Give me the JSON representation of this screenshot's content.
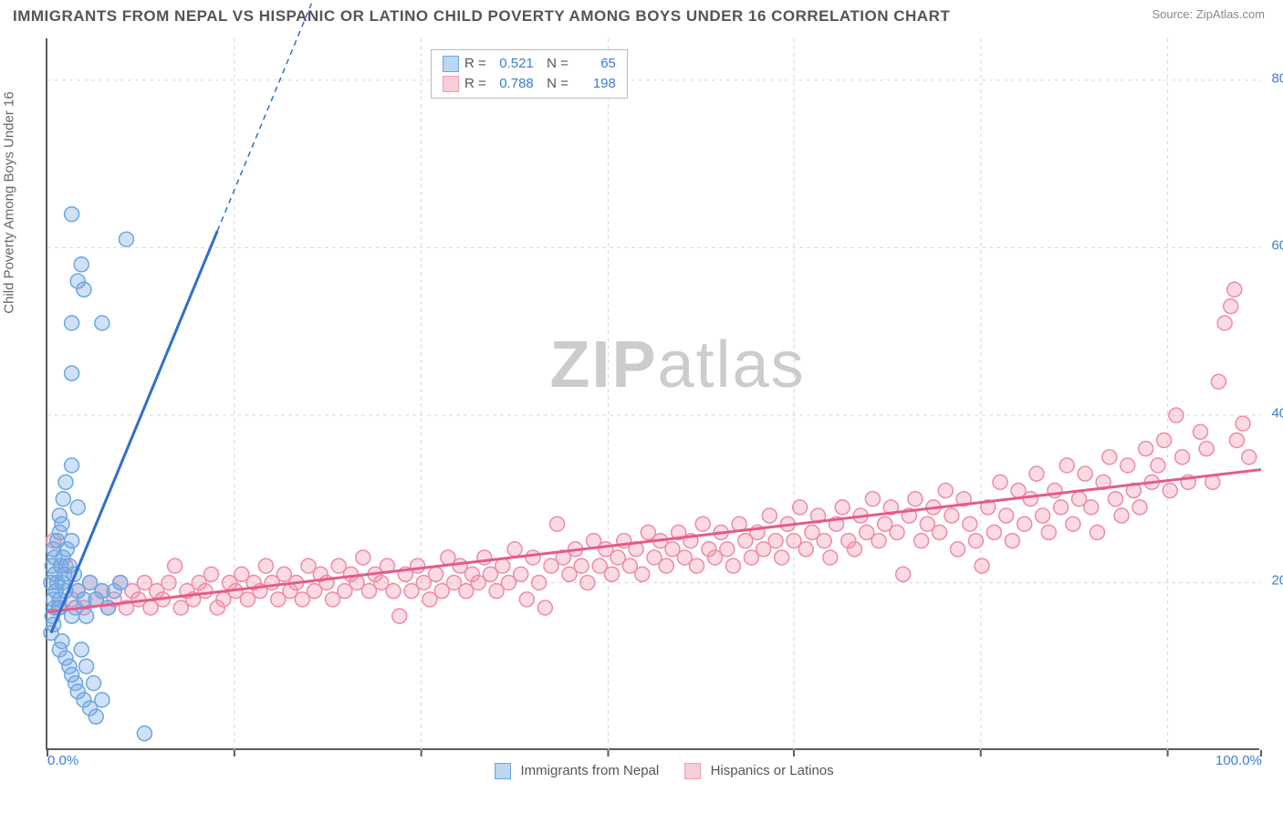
{
  "title": "IMMIGRANTS FROM NEPAL VS HISPANIC OR LATINO CHILD POVERTY AMONG BOYS UNDER 16 CORRELATION CHART",
  "source": "Source: ZipAtlas.com",
  "watermark_bold": "ZIP",
  "watermark_rest": "atlas",
  "y_axis_label": "Child Poverty Among Boys Under 16",
  "chart": {
    "type": "scatter",
    "background_color": "#ffffff",
    "grid_color": "#d8d8d8",
    "axis_color": "#5c5c5c",
    "text_color": "#555555",
    "value_color": "#3b7dd8",
    "xlim": [
      0,
      100
    ],
    "ylim": [
      0,
      85
    ],
    "x_ticks": [
      0,
      15.4,
      30.8,
      46.2,
      61.5,
      76.9,
      92.3,
      100
    ],
    "x_tick_labels": {
      "0": "0.0%",
      "100": "100.0%"
    },
    "y_ticks": [
      20,
      40,
      60,
      80
    ],
    "y_tick_labels": {
      "20": "20.0%",
      "40": "40.0%",
      "60": "60.0%",
      "80": "80.0%"
    },
    "marker_radius": 8,
    "marker_stroke_width": 1.5,
    "line_width": 3
  },
  "series_a": {
    "label": "Immigrants from Nepal",
    "swatch_fill": "#bdd7f0",
    "swatch_stroke": "#6ca6e2",
    "marker_fill": "rgba(120,170,225,0.35)",
    "marker_stroke": "#6ca6e2",
    "line_color": "#2f6fc9",
    "R": "0.521",
    "N": "65",
    "trend": {
      "x1": 0.3,
      "y1": 14,
      "x2_solid": 14,
      "y2_solid": 62,
      "x2_dash": 22,
      "y2_dash": 90
    },
    "points": [
      [
        0.3,
        14
      ],
      [
        0.4,
        16
      ],
      [
        0.5,
        15
      ],
      [
        0.6,
        17
      ],
      [
        0.5,
        18
      ],
      [
        0.7,
        19
      ],
      [
        0.8,
        20
      ],
      [
        0.6,
        21
      ],
      [
        0.4,
        22
      ],
      [
        0.5,
        24
      ],
      [
        0.9,
        17
      ],
      [
        1.0,
        18
      ],
      [
        1.2,
        20
      ],
      [
        1.1,
        22
      ],
      [
        1.3,
        23
      ],
      [
        1.5,
        19
      ],
      [
        1.4,
        21
      ],
      [
        1.6,
        24
      ],
      [
        1.8,
        22
      ],
      [
        2.0,
        25
      ],
      [
        2.2,
        21
      ],
      [
        2.5,
        19
      ],
      [
        2.3,
        17
      ],
      [
        2.0,
        16
      ],
      [
        3.0,
        18
      ],
      [
        3.5,
        20
      ],
      [
        3.2,
        16
      ],
      [
        4.0,
        18
      ],
      [
        4.5,
        19
      ],
      [
        5.0,
        17
      ],
      [
        5.5,
        19
      ],
      [
        6.0,
        20
      ],
      [
        1.0,
        12
      ],
      [
        1.2,
        13
      ],
      [
        1.5,
        11
      ],
      [
        1.8,
        10
      ],
      [
        2.0,
        9
      ],
      [
        2.3,
        8
      ],
      [
        2.5,
        7
      ],
      [
        3.0,
        6
      ],
      [
        3.5,
        5
      ],
      [
        4.0,
        4
      ],
      [
        4.5,
        6
      ],
      [
        3.8,
        8
      ],
      [
        3.2,
        10
      ],
      [
        2.8,
        12
      ],
      [
        8.0,
        2
      ],
      [
        1.0,
        28
      ],
      [
        1.3,
        30
      ],
      [
        1.5,
        32
      ],
      [
        2.0,
        34
      ],
      [
        2.5,
        29
      ],
      [
        2.0,
        45
      ],
      [
        2.0,
        51
      ],
      [
        2.5,
        56
      ],
      [
        3.0,
        55
      ],
      [
        4.5,
        51
      ],
      [
        2.8,
        58
      ],
      [
        2.0,
        64
      ],
      [
        6.5,
        61
      ],
      [
        1.0,
        26
      ],
      [
        0.8,
        25
      ],
      [
        1.2,
        27
      ],
      [
        0.6,
        23
      ],
      [
        0.3,
        20
      ]
    ]
  },
  "series_b": {
    "label": "Hispanics or Latinos",
    "swatch_fill": "#f7cdd8",
    "swatch_stroke": "#ef9fb3",
    "marker_fill": "rgba(240,150,175,0.35)",
    "marker_stroke": "#ef8ba5",
    "line_color": "#e65a8a",
    "R": "0.788",
    "N": "198",
    "trend": {
      "x1": 0,
      "y1": 16.5,
      "x2": 100,
      "y2": 33.5
    },
    "points": [
      [
        0.5,
        25
      ],
      [
        1,
        17
      ],
      [
        1.5,
        22
      ],
      [
        2,
        18
      ],
      [
        2.5,
        19
      ],
      [
        3,
        17
      ],
      [
        3.5,
        20
      ],
      [
        4,
        18
      ],
      [
        4.5,
        19
      ],
      [
        5,
        17
      ],
      [
        5.5,
        18
      ],
      [
        6,
        20
      ],
      [
        6.5,
        17
      ],
      [
        7,
        19
      ],
      [
        7.5,
        18
      ],
      [
        8,
        20
      ],
      [
        8.5,
        17
      ],
      [
        9,
        19
      ],
      [
        9.5,
        18
      ],
      [
        10,
        20
      ],
      [
        10.5,
        22
      ],
      [
        11,
        17
      ],
      [
        11.5,
        19
      ],
      [
        12,
        18
      ],
      [
        12.5,
        20
      ],
      [
        13,
        19
      ],
      [
        13.5,
        21
      ],
      [
        14,
        17
      ],
      [
        14.5,
        18
      ],
      [
        15,
        20
      ],
      [
        15.5,
        19
      ],
      [
        16,
        21
      ],
      [
        16.5,
        18
      ],
      [
        17,
        20
      ],
      [
        17.5,
        19
      ],
      [
        18,
        22
      ],
      [
        18.5,
        20
      ],
      [
        19,
        18
      ],
      [
        19.5,
        21
      ],
      [
        20,
        19
      ],
      [
        20.5,
        20
      ],
      [
        21,
        18
      ],
      [
        21.5,
        22
      ],
      [
        22,
        19
      ],
      [
        22.5,
        21
      ],
      [
        23,
        20
      ],
      [
        23.5,
        18
      ],
      [
        24,
        22
      ],
      [
        24.5,
        19
      ],
      [
        25,
        21
      ],
      [
        25.5,
        20
      ],
      [
        26,
        23
      ],
      [
        26.5,
        19
      ],
      [
        27,
        21
      ],
      [
        27.5,
        20
      ],
      [
        28,
        22
      ],
      [
        28.5,
        19
      ],
      [
        29,
        16
      ],
      [
        29.5,
        21
      ],
      [
        30,
        19
      ],
      [
        30.5,
        22
      ],
      [
        31,
        20
      ],
      [
        31.5,
        18
      ],
      [
        32,
        21
      ],
      [
        32.5,
        19
      ],
      [
        33,
        23
      ],
      [
        33.5,
        20
      ],
      [
        34,
        22
      ],
      [
        34.5,
        19
      ],
      [
        35,
        21
      ],
      [
        35.5,
        20
      ],
      [
        36,
        23
      ],
      [
        36.5,
        21
      ],
      [
        37,
        19
      ],
      [
        37.5,
        22
      ],
      [
        38,
        20
      ],
      [
        38.5,
        24
      ],
      [
        39,
        21
      ],
      [
        39.5,
        18
      ],
      [
        40,
        23
      ],
      [
        40.5,
        20
      ],
      [
        41,
        17
      ],
      [
        41.5,
        22
      ],
      [
        42,
        27
      ],
      [
        42.5,
        23
      ],
      [
        43,
        21
      ],
      [
        43.5,
        24
      ],
      [
        44,
        22
      ],
      [
        44.5,
        20
      ],
      [
        45,
        25
      ],
      [
        45.5,
        22
      ],
      [
        46,
        24
      ],
      [
        46.5,
        21
      ],
      [
        47,
        23
      ],
      [
        47.5,
        25
      ],
      [
        48,
        22
      ],
      [
        48.5,
        24
      ],
      [
        49,
        21
      ],
      [
        49.5,
        26
      ],
      [
        50,
        23
      ],
      [
        50.5,
        25
      ],
      [
        51,
        22
      ],
      [
        51.5,
        24
      ],
      [
        52,
        26
      ],
      [
        52.5,
        23
      ],
      [
        53,
        25
      ],
      [
        53.5,
        22
      ],
      [
        54,
        27
      ],
      [
        54.5,
        24
      ],
      [
        55,
        23
      ],
      [
        55.5,
        26
      ],
      [
        56,
        24
      ],
      [
        56.5,
        22
      ],
      [
        57,
        27
      ],
      [
        57.5,
        25
      ],
      [
        58,
        23
      ],
      [
        58.5,
        26
      ],
      [
        59,
        24
      ],
      [
        59.5,
        28
      ],
      [
        60,
        25
      ],
      [
        60.5,
        23
      ],
      [
        61,
        27
      ],
      [
        61.5,
        25
      ],
      [
        62,
        29
      ],
      [
        62.5,
        24
      ],
      [
        63,
        26
      ],
      [
        63.5,
        28
      ],
      [
        64,
        25
      ],
      [
        64.5,
        23
      ],
      [
        65,
        27
      ],
      [
        65.5,
        29
      ],
      [
        66,
        25
      ],
      [
        66.5,
        24
      ],
      [
        67,
        28
      ],
      [
        67.5,
        26
      ],
      [
        68,
        30
      ],
      [
        68.5,
        25
      ],
      [
        69,
        27
      ],
      [
        69.5,
        29
      ],
      [
        70,
        26
      ],
      [
        70.5,
        21
      ],
      [
        71,
        28
      ],
      [
        71.5,
        30
      ],
      [
        72,
        25
      ],
      [
        72.5,
        27
      ],
      [
        73,
        29
      ],
      [
        73.5,
        26
      ],
      [
        74,
        31
      ],
      [
        74.5,
        28
      ],
      [
        75,
        24
      ],
      [
        75.5,
        30
      ],
      [
        76,
        27
      ],
      [
        76.5,
        25
      ],
      [
        77,
        22
      ],
      [
        77.5,
        29
      ],
      [
        78,
        26
      ],
      [
        78.5,
        32
      ],
      [
        79,
        28
      ],
      [
        79.5,
        25
      ],
      [
        80,
        31
      ],
      [
        80.5,
        27
      ],
      [
        81,
        30
      ],
      [
        81.5,
        33
      ],
      [
        82,
        28
      ],
      [
        82.5,
        26
      ],
      [
        83,
        31
      ],
      [
        83.5,
        29
      ],
      [
        84,
        34
      ],
      [
        84.5,
        27
      ],
      [
        85,
        30
      ],
      [
        85.5,
        33
      ],
      [
        86,
        29
      ],
      [
        86.5,
        26
      ],
      [
        87,
        32
      ],
      [
        87.5,
        35
      ],
      [
        88,
        30
      ],
      [
        88.5,
        28
      ],
      [
        89,
        34
      ],
      [
        89.5,
        31
      ],
      [
        90,
        29
      ],
      [
        90.5,
        36
      ],
      [
        91,
        32
      ],
      [
        91.5,
        34
      ],
      [
        92,
        37
      ],
      [
        92.5,
        31
      ],
      [
        93,
        40
      ],
      [
        93.5,
        35
      ],
      [
        94,
        32
      ],
      [
        95,
        38
      ],
      [
        95.5,
        36
      ],
      [
        96,
        32
      ],
      [
        96.5,
        44
      ],
      [
        97,
        51
      ],
      [
        97.5,
        53
      ],
      [
        97.8,
        55
      ],
      [
        98,
        37
      ],
      [
        98.5,
        39
      ],
      [
        99,
        35
      ]
    ]
  }
}
